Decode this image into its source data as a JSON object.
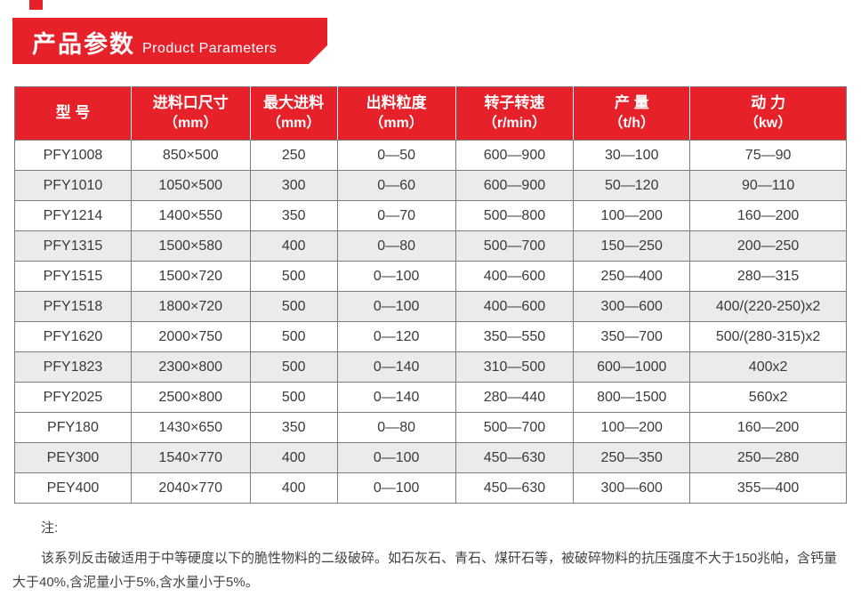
{
  "banner": {
    "title_cn": "产品参数",
    "title_en": "Product Parameters"
  },
  "table": {
    "headers": [
      {
        "name": "型 号",
        "unit": ""
      },
      {
        "name": "进料口尺寸",
        "unit": "（mm）"
      },
      {
        "name": "最大进料",
        "unit": "（mm）"
      },
      {
        "name": "出料粒度",
        "unit": "（mm）"
      },
      {
        "name": "转子转速",
        "unit": "（r/min）"
      },
      {
        "name": "产 量",
        "unit": "（t/h）"
      },
      {
        "name": "动 力",
        "unit": "（kw）"
      }
    ],
    "rows": [
      [
        "PFY1008",
        "850×500",
        "250",
        "0—50",
        "600—900",
        "30—100",
        "75—90"
      ],
      [
        "PFY1010",
        "1050×500",
        "300",
        "0—60",
        "600—900",
        "50—120",
        "90—110"
      ],
      [
        "PFY1214",
        "1400×550",
        "350",
        "0—70",
        "500—800",
        "100—200",
        "160—200"
      ],
      [
        "PFY1315",
        "1500×580",
        "400",
        "0—80",
        "500—700",
        "150—250",
        "200—250"
      ],
      [
        "PFY1515",
        "1500×720",
        "500",
        "0—100",
        "400—600",
        "250—400",
        "280—315"
      ],
      [
        "PFY1518",
        "1800×720",
        "500",
        "0—100",
        "400—600",
        "300—600",
        "400/(220-250)x2"
      ],
      [
        "PFY1620",
        "2000×750",
        "500",
        "0—120",
        "350—550",
        "350—700",
        "500/(280-315)x2"
      ],
      [
        "PFY1823",
        "2300×800",
        "500",
        "0—140",
        "310—500",
        "600—1000",
        "400x2"
      ],
      [
        "PFY2025",
        "2500×800",
        "500",
        "0—140",
        "280—440",
        "800—1500",
        "560x2"
      ],
      [
        "PFY180",
        "1430×650",
        "350",
        "0—80",
        "500—700",
        "100—200",
        "160—200"
      ],
      [
        "PEY300",
        "1540×770",
        "400",
        "0—100",
        "450—630",
        "250—350",
        "250—280"
      ],
      [
        "PEY400",
        "2040×770",
        "400",
        "0—100",
        "450—630",
        "300—600",
        "355—400"
      ]
    ]
  },
  "note": {
    "label": "注:",
    "text": "该系列反击破适用于中等硬度以下的脆性物料的二级破碎。如石灰石、青石、煤矸石等，被破碎物料的抗压强度不大于150兆帕，含钙量大于40%,含泥量小于5%,含水量小于5%。"
  },
  "colors": {
    "accent_red": "#e6212a",
    "row_alt_gray": "#ebebeb",
    "grid_border_gray": "#7c7c7c"
  }
}
